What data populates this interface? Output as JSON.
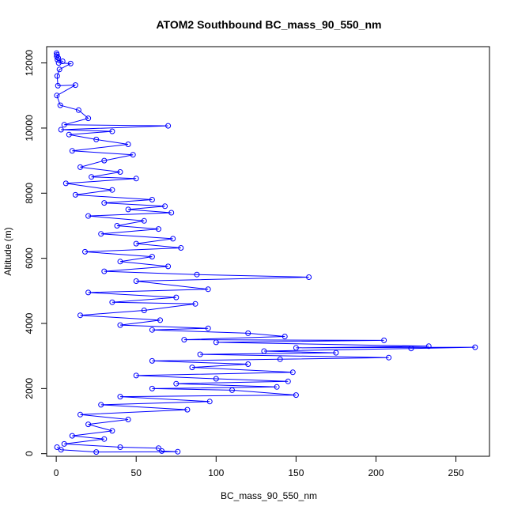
{
  "chart_data": {
    "type": "scatter",
    "title": "ATOM2 Southbound BC_mass_90_550_nm",
    "xlabel": "BC_mass_90_550_nm",
    "ylabel": "Altitude (m)",
    "xlim": [
      -6,
      271
    ],
    "ylim": [
      -80,
      12500
    ],
    "xticks": [
      0,
      50,
      100,
      150,
      200,
      250
    ],
    "yticks": [
      0,
      2000,
      4000,
      6000,
      8000,
      10000,
      12000
    ],
    "grid": false,
    "legend": "none",
    "series": [
      {
        "color": "#0000ff",
        "marker": "open-circle",
        "connected": true,
        "points": [
          [
            0.2,
            12300
          ],
          [
            0.5,
            12250
          ],
          [
            0.3,
            12200
          ],
          [
            1.2,
            12150
          ],
          [
            0.8,
            12100
          ],
          [
            4.0,
            12050
          ],
          [
            1.5,
            12000
          ],
          [
            9.0,
            11980
          ],
          [
            2.0,
            11800
          ],
          [
            0.6,
            11600
          ],
          [
            1.0,
            11300
          ],
          [
            12.0,
            11320
          ],
          [
            0.4,
            11000
          ],
          [
            2.5,
            10700
          ],
          [
            14.0,
            10550
          ],
          [
            20.0,
            10300
          ],
          [
            5.0,
            10100
          ],
          [
            70.0,
            10070
          ],
          [
            3.0,
            9950
          ],
          [
            35.0,
            9900
          ],
          [
            8.0,
            9800
          ],
          [
            25.0,
            9650
          ],
          [
            45.0,
            9500
          ],
          [
            10.0,
            9300
          ],
          [
            48.0,
            9180
          ],
          [
            30.0,
            9000
          ],
          [
            15.0,
            8800
          ],
          [
            40.0,
            8650
          ],
          [
            22.0,
            8500
          ],
          [
            50.0,
            8450
          ],
          [
            6.0,
            8300
          ],
          [
            35.0,
            8100
          ],
          [
            12.0,
            7950
          ],
          [
            60.0,
            7800
          ],
          [
            30.0,
            7700
          ],
          [
            68.0,
            7600
          ],
          [
            45.0,
            7500
          ],
          [
            72.0,
            7400
          ],
          [
            20.0,
            7300
          ],
          [
            55.0,
            7150
          ],
          [
            38.0,
            7000
          ],
          [
            64.0,
            6900
          ],
          [
            28.0,
            6750
          ],
          [
            73.0,
            6600
          ],
          [
            50.0,
            6450
          ],
          [
            78.0,
            6320
          ],
          [
            18.0,
            6200
          ],
          [
            60.0,
            6050
          ],
          [
            40.0,
            5900
          ],
          [
            70.0,
            5750
          ],
          [
            30.0,
            5600
          ],
          [
            88.0,
            5500
          ],
          [
            158.0,
            5420
          ],
          [
            50.0,
            5300
          ],
          [
            95.0,
            5050
          ],
          [
            20.0,
            4950
          ],
          [
            75.0,
            4800
          ],
          [
            35.0,
            4650
          ],
          [
            87.0,
            4600
          ],
          [
            55.0,
            4400
          ],
          [
            15.0,
            4250
          ],
          [
            65.0,
            4100
          ],
          [
            40.0,
            3950
          ],
          [
            95.0,
            3850
          ],
          [
            60.0,
            3800
          ],
          [
            120.0,
            3700
          ],
          [
            143.0,
            3600
          ],
          [
            80.0,
            3500
          ],
          [
            205.0,
            3480
          ],
          [
            100.0,
            3420
          ],
          [
            233.0,
            3300
          ],
          [
            150.0,
            3250
          ],
          [
            262.0,
            3270
          ],
          [
            222.0,
            3230
          ],
          [
            130.0,
            3150
          ],
          [
            175.0,
            3100
          ],
          [
            90.0,
            3050
          ],
          [
            208.0,
            2950
          ],
          [
            140.0,
            2900
          ],
          [
            60.0,
            2850
          ],
          [
            120.0,
            2750
          ],
          [
            85.0,
            2650
          ],
          [
            148.0,
            2500
          ],
          [
            50.0,
            2400
          ],
          [
            100.0,
            2300
          ],
          [
            145.0,
            2220
          ],
          [
            75.0,
            2150
          ],
          [
            138.0,
            2050
          ],
          [
            60.0,
            2000
          ],
          [
            110.0,
            1950
          ],
          [
            150.0,
            1800
          ],
          [
            40.0,
            1750
          ],
          [
            96.0,
            1600
          ],
          [
            28.0,
            1500
          ],
          [
            82.0,
            1350
          ],
          [
            15.0,
            1200
          ],
          [
            45.0,
            1050
          ],
          [
            20.0,
            900
          ],
          [
            35.0,
            700
          ],
          [
            10.0,
            550
          ],
          [
            30.0,
            450
          ],
          [
            5.0,
            300
          ],
          [
            40.0,
            200
          ],
          [
            64.0,
            170
          ],
          [
            66.0,
            80
          ],
          [
            76.0,
            60
          ],
          [
            25.0,
            50
          ],
          [
            3.0,
            120
          ],
          [
            0.5,
            200
          ]
        ]
      }
    ]
  }
}
